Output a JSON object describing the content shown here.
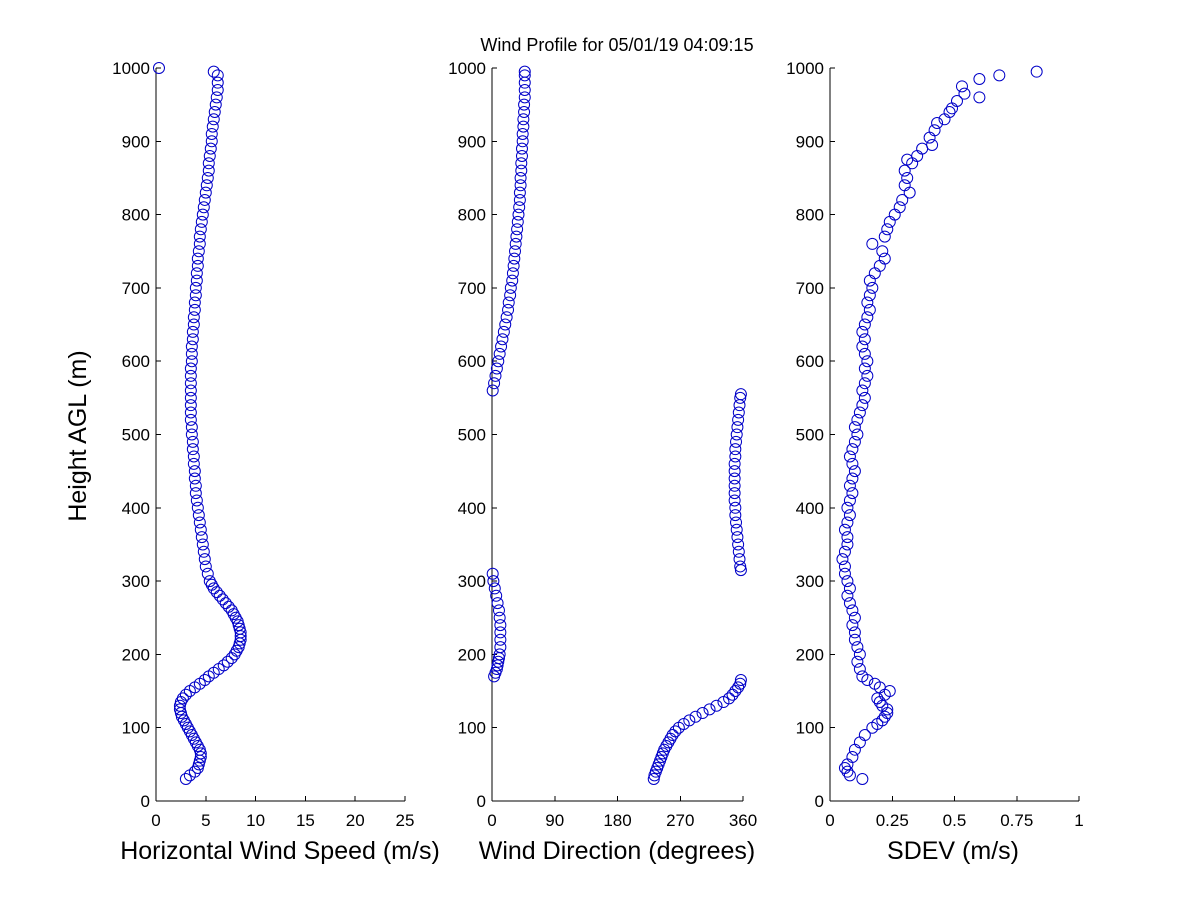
{
  "title": "Wind Profile for  05/01/19 04:09:15",
  "marker_color": "#0000c8",
  "chart_data": [
    {
      "type": "scatter",
      "name": "speed",
      "xlabel": "Horizontal Wind Speed (m/s)",
      "ylabel": "Height AGL (m)",
      "xlim": [
        0,
        25
      ],
      "ylim": [
        0,
        1000
      ],
      "xticks": [
        "0",
        "5",
        "10",
        "15",
        "20",
        "25"
      ],
      "yticks": [
        "0",
        "100",
        "200",
        "300",
        "400",
        "500",
        "600",
        "700",
        "800",
        "900",
        "1000"
      ],
      "points": [
        [
          0.3,
          1000
        ],
        [
          3.0,
          30
        ],
        [
          3.4,
          35
        ],
        [
          3.9,
          40
        ],
        [
          4.2,
          45
        ],
        [
          4.3,
          50
        ],
        [
          4.4,
          55
        ],
        [
          4.5,
          60
        ],
        [
          4.5,
          65
        ],
        [
          4.4,
          70
        ],
        [
          4.2,
          75
        ],
        [
          4.0,
          80
        ],
        [
          3.8,
          85
        ],
        [
          3.6,
          90
        ],
        [
          3.4,
          95
        ],
        [
          3.2,
          100
        ],
        [
          3.0,
          105
        ],
        [
          2.8,
          110
        ],
        [
          2.6,
          115
        ],
        [
          2.5,
          120
        ],
        [
          2.4,
          125
        ],
        [
          2.4,
          130
        ],
        [
          2.5,
          135
        ],
        [
          2.7,
          140
        ],
        [
          3.0,
          145
        ],
        [
          3.4,
          150
        ],
        [
          3.9,
          155
        ],
        [
          4.4,
          160
        ],
        [
          4.9,
          165
        ],
        [
          5.3,
          170
        ],
        [
          5.8,
          175
        ],
        [
          6.3,
          180
        ],
        [
          6.8,
          185
        ],
        [
          7.2,
          190
        ],
        [
          7.6,
          195
        ],
        [
          7.9,
          200
        ],
        [
          8.1,
          205
        ],
        [
          8.3,
          210
        ],
        [
          8.4,
          215
        ],
        [
          8.5,
          220
        ],
        [
          8.5,
          225
        ],
        [
          8.5,
          230
        ],
        [
          8.4,
          235
        ],
        [
          8.3,
          240
        ],
        [
          8.2,
          245
        ],
        [
          8.0,
          250
        ],
        [
          7.8,
          255
        ],
        [
          7.6,
          260
        ],
        [
          7.3,
          265
        ],
        [
          7.0,
          270
        ],
        [
          6.7,
          275
        ],
        [
          6.4,
          280
        ],
        [
          6.1,
          285
        ],
        [
          5.8,
          290
        ],
        [
          5.6,
          295
        ],
        [
          5.4,
          300
        ],
        [
          5.2,
          310
        ],
        [
          5.0,
          320
        ],
        [
          4.9,
          330
        ],
        [
          4.8,
          340
        ],
        [
          4.7,
          350
        ],
        [
          4.6,
          360
        ],
        [
          4.5,
          370
        ],
        [
          4.4,
          380
        ],
        [
          4.3,
          390
        ],
        [
          4.2,
          400
        ],
        [
          4.1,
          410
        ],
        [
          4.0,
          420
        ],
        [
          4.0,
          430
        ],
        [
          3.9,
          440
        ],
        [
          3.9,
          450
        ],
        [
          3.8,
          460
        ],
        [
          3.8,
          470
        ],
        [
          3.7,
          480
        ],
        [
          3.7,
          490
        ],
        [
          3.6,
          500
        ],
        [
          3.6,
          510
        ],
        [
          3.5,
          520
        ],
        [
          3.5,
          530
        ],
        [
          3.5,
          540
        ],
        [
          3.5,
          550
        ],
        [
          3.5,
          560
        ],
        [
          3.5,
          570
        ],
        [
          3.5,
          580
        ],
        [
          3.5,
          590
        ],
        [
          3.6,
          600
        ],
        [
          3.6,
          610
        ],
        [
          3.6,
          620
        ],
        [
          3.7,
          630
        ],
        [
          3.7,
          640
        ],
        [
          3.8,
          650
        ],
        [
          3.8,
          660
        ],
        [
          3.9,
          670
        ],
        [
          3.9,
          680
        ],
        [
          4.0,
          690
        ],
        [
          4.0,
          700
        ],
        [
          4.1,
          710
        ],
        [
          4.1,
          720
        ],
        [
          4.2,
          730
        ],
        [
          4.2,
          740
        ],
        [
          4.3,
          750
        ],
        [
          4.4,
          760
        ],
        [
          4.4,
          770
        ],
        [
          4.5,
          780
        ],
        [
          4.6,
          790
        ],
        [
          4.7,
          800
        ],
        [
          4.8,
          810
        ],
        [
          4.9,
          820
        ],
        [
          5.0,
          830
        ],
        [
          5.1,
          840
        ],
        [
          5.2,
          850
        ],
        [
          5.3,
          860
        ],
        [
          5.3,
          870
        ],
        [
          5.4,
          880
        ],
        [
          5.5,
          890
        ],
        [
          5.6,
          900
        ],
        [
          5.6,
          910
        ],
        [
          5.7,
          920
        ],
        [
          5.8,
          930
        ],
        [
          5.9,
          940
        ],
        [
          6.0,
          950
        ],
        [
          6.1,
          960
        ],
        [
          6.2,
          970
        ],
        [
          6.2,
          980
        ],
        [
          6.2,
          990
        ],
        [
          5.8,
          995
        ]
      ]
    },
    {
      "type": "scatter",
      "name": "direction",
      "xlabel": "Wind Direction (degrees)",
      "ylabel": "",
      "xlim": [
        0,
        360
      ],
      "ylim": [
        0,
        1000
      ],
      "xticks": [
        "0",
        "90",
        "180",
        "270",
        "360"
      ],
      "yticks": [
        "0",
        "100",
        "200",
        "300",
        "400",
        "500",
        "600",
        "700",
        "800",
        "900",
        "1000"
      ],
      "points": [
        [
          232,
          30
        ],
        [
          233,
          35
        ],
        [
          235,
          40
        ],
        [
          237,
          45
        ],
        [
          239,
          50
        ],
        [
          241,
          55
        ],
        [
          243,
          60
        ],
        [
          245,
          65
        ],
        [
          247,
          70
        ],
        [
          250,
          75
        ],
        [
          253,
          80
        ],
        [
          256,
          85
        ],
        [
          259,
          90
        ],
        [
          263,
          95
        ],
        [
          268,
          100
        ],
        [
          275,
          105
        ],
        [
          283,
          110
        ],
        [
          292,
          115
        ],
        [
          302,
          120
        ],
        [
          312,
          125
        ],
        [
          322,
          130
        ],
        [
          332,
          135
        ],
        [
          340,
          140
        ],
        [
          345,
          145
        ],
        [
          349,
          150
        ],
        [
          353,
          155
        ],
        [
          356,
          160
        ],
        [
          357,
          165
        ],
        [
          3,
          170
        ],
        [
          5,
          175
        ],
        [
          7,
          180
        ],
        [
          8,
          185
        ],
        [
          9,
          190
        ],
        [
          10,
          195
        ],
        [
          11,
          200
        ],
        [
          12,
          210
        ],
        [
          12,
          220
        ],
        [
          12,
          230
        ],
        [
          12,
          240
        ],
        [
          11,
          250
        ],
        [
          10,
          260
        ],
        [
          8,
          270
        ],
        [
          6,
          280
        ],
        [
          4,
          290
        ],
        [
          2,
          300
        ],
        [
          1,
          310
        ],
        [
          357,
          315
        ],
        [
          356,
          320
        ],
        [
          355,
          330
        ],
        [
          354,
          340
        ],
        [
          353,
          350
        ],
        [
          352,
          360
        ],
        [
          351,
          370
        ],
        [
          350,
          380
        ],
        [
          349,
          390
        ],
        [
          349,
          400
        ],
        [
          348,
          410
        ],
        [
          348,
          420
        ],
        [
          348,
          430
        ],
        [
          348,
          440
        ],
        [
          348,
          450
        ],
        [
          348,
          460
        ],
        [
          349,
          470
        ],
        [
          349,
          480
        ],
        [
          350,
          490
        ],
        [
          351,
          500
        ],
        [
          352,
          510
        ],
        [
          353,
          520
        ],
        [
          354,
          530
        ],
        [
          355,
          540
        ],
        [
          356,
          550
        ],
        [
          357,
          555
        ],
        [
          1,
          560
        ],
        [
          3,
          570
        ],
        [
          5,
          580
        ],
        [
          7,
          590
        ],
        [
          9,
          600
        ],
        [
          11,
          610
        ],
        [
          13,
          620
        ],
        [
          15,
          630
        ],
        [
          17,
          640
        ],
        [
          19,
          650
        ],
        [
          21,
          660
        ],
        [
          23,
          670
        ],
        [
          24,
          680
        ],
        [
          26,
          690
        ],
        [
          27,
          700
        ],
        [
          29,
          710
        ],
        [
          30,
          720
        ],
        [
          31,
          730
        ],
        [
          32,
          740
        ],
        [
          33,
          750
        ],
        [
          34,
          760
        ],
        [
          35,
          770
        ],
        [
          36,
          780
        ],
        [
          37,
          790
        ],
        [
          38,
          800
        ],
        [
          39,
          810
        ],
        [
          40,
          820
        ],
        [
          40,
          830
        ],
        [
          41,
          840
        ],
        [
          41,
          850
        ],
        [
          42,
          860
        ],
        [
          42,
          870
        ],
        [
          43,
          880
        ],
        [
          43,
          890
        ],
        [
          44,
          900
        ],
        [
          44,
          910
        ],
        [
          45,
          920
        ],
        [
          45,
          930
        ],
        [
          46,
          940
        ],
        [
          46,
          950
        ],
        [
          47,
          960
        ],
        [
          47,
          970
        ],
        [
          47,
          980
        ],
        [
          47,
          990
        ],
        [
          47,
          995
        ]
      ]
    },
    {
      "type": "scatter",
      "name": "sdev",
      "xlabel": "SDEV  (m/s)",
      "ylabel": "",
      "xlim": [
        0,
        1
      ],
      "ylim": [
        0,
        1000
      ],
      "xticks": [
        "0",
        "0.25",
        "0.5",
        "0.75",
        "1"
      ],
      "yticks": [
        "0",
        "100",
        "200",
        "300",
        "400",
        "500",
        "600",
        "700",
        "800",
        "900",
        "1000"
      ],
      "points": [
        [
          0.13,
          30
        ],
        [
          0.08,
          35
        ],
        [
          0.07,
          40
        ],
        [
          0.06,
          45
        ],
        [
          0.07,
          50
        ],
        [
          0.09,
          60
        ],
        [
          0.1,
          70
        ],
        [
          0.12,
          80
        ],
        [
          0.14,
          90
        ],
        [
          0.17,
          100
        ],
        [
          0.19,
          105
        ],
        [
          0.21,
          110
        ],
        [
          0.22,
          115
        ],
        [
          0.23,
          120
        ],
        [
          0.23,
          125
        ],
        [
          0.21,
          130
        ],
        [
          0.2,
          135
        ],
        [
          0.19,
          140
        ],
        [
          0.22,
          145
        ],
        [
          0.24,
          150
        ],
        [
          0.2,
          155
        ],
        [
          0.18,
          160
        ],
        [
          0.15,
          165
        ],
        [
          0.13,
          170
        ],
        [
          0.12,
          180
        ],
        [
          0.11,
          190
        ],
        [
          0.12,
          200
        ],
        [
          0.11,
          210
        ],
        [
          0.1,
          220
        ],
        [
          0.1,
          230
        ],
        [
          0.09,
          240
        ],
        [
          0.1,
          250
        ],
        [
          0.09,
          260
        ],
        [
          0.08,
          270
        ],
        [
          0.07,
          280
        ],
        [
          0.08,
          290
        ],
        [
          0.07,
          300
        ],
        [
          0.06,
          310
        ],
        [
          0.06,
          320
        ],
        [
          0.05,
          330
        ],
        [
          0.06,
          340
        ],
        [
          0.07,
          350
        ],
        [
          0.07,
          360
        ],
        [
          0.06,
          370
        ],
        [
          0.07,
          380
        ],
        [
          0.08,
          390
        ],
        [
          0.07,
          400
        ],
        [
          0.08,
          410
        ],
        [
          0.09,
          420
        ],
        [
          0.08,
          430
        ],
        [
          0.09,
          440
        ],
        [
          0.1,
          450
        ],
        [
          0.09,
          460
        ],
        [
          0.08,
          470
        ],
        [
          0.09,
          480
        ],
        [
          0.1,
          490
        ],
        [
          0.11,
          500
        ],
        [
          0.1,
          510
        ],
        [
          0.11,
          520
        ],
        [
          0.12,
          530
        ],
        [
          0.13,
          540
        ],
        [
          0.14,
          550
        ],
        [
          0.13,
          560
        ],
        [
          0.14,
          570
        ],
        [
          0.15,
          580
        ],
        [
          0.14,
          590
        ],
        [
          0.15,
          600
        ],
        [
          0.14,
          610
        ],
        [
          0.13,
          620
        ],
        [
          0.14,
          630
        ],
        [
          0.13,
          640
        ],
        [
          0.14,
          650
        ],
        [
          0.15,
          660
        ],
        [
          0.16,
          670
        ],
        [
          0.15,
          680
        ],
        [
          0.16,
          690
        ],
        [
          0.17,
          700
        ],
        [
          0.16,
          710
        ],
        [
          0.18,
          720
        ],
        [
          0.2,
          730
        ],
        [
          0.22,
          740
        ],
        [
          0.21,
          750
        ],
        [
          0.17,
          760
        ],
        [
          0.22,
          770
        ],
        [
          0.23,
          780
        ],
        [
          0.24,
          790
        ],
        [
          0.26,
          800
        ],
        [
          0.28,
          810
        ],
        [
          0.29,
          820
        ],
        [
          0.32,
          830
        ],
        [
          0.3,
          840
        ],
        [
          0.31,
          850
        ],
        [
          0.3,
          860
        ],
        [
          0.33,
          870
        ],
        [
          0.31,
          875
        ],
        [
          0.35,
          880
        ],
        [
          0.37,
          890
        ],
        [
          0.41,
          895
        ],
        [
          0.4,
          905
        ],
        [
          0.42,
          915
        ],
        [
          0.43,
          925
        ],
        [
          0.46,
          930
        ],
        [
          0.48,
          940
        ],
        [
          0.49,
          945
        ],
        [
          0.51,
          955
        ],
        [
          0.54,
          965
        ],
        [
          0.53,
          975
        ],
        [
          0.6,
          960
        ],
        [
          0.6,
          985
        ],
        [
          0.68,
          990
        ],
        [
          0.83,
          995
        ]
      ]
    }
  ]
}
